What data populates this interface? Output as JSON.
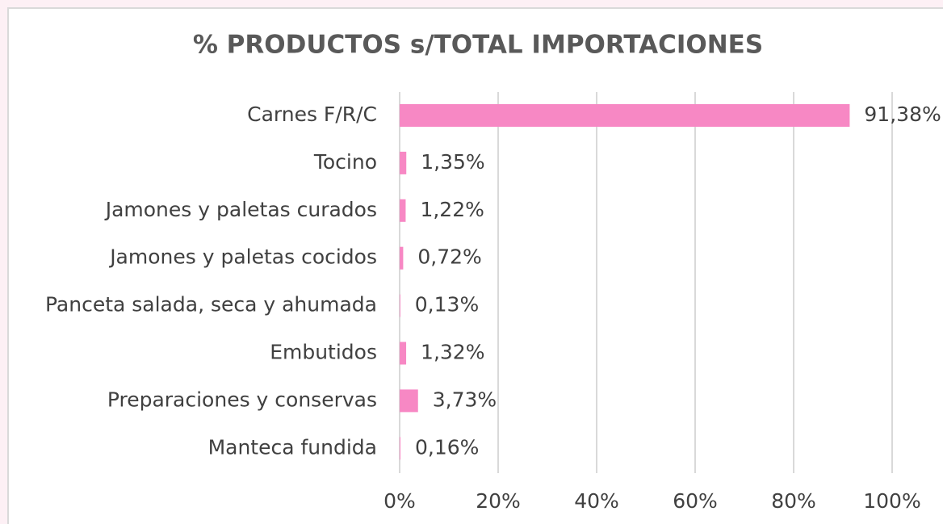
{
  "chart_data": {
    "type": "bar",
    "orientation": "horizontal",
    "title": "% PRODUCTOS s/TOTAL IMPORTACIONES",
    "categories": [
      "Carnes F/R/C",
      "Tocino",
      "Jamones y paletas curados",
      "Jamones y paletas cocidos",
      "Panceta salada, seca y ahumada",
      "Embutidos",
      "Preparaciones y conservas",
      "Manteca fundida"
    ],
    "values": [
      91.38,
      1.35,
      1.22,
      0.72,
      0.13,
      1.32,
      3.73,
      0.16
    ],
    "value_labels": [
      "91,38%",
      "1,35%",
      "1,22%",
      "0,72%",
      "0,13%",
      "1,32%",
      "3,73%",
      "0,16%"
    ],
    "color": "#f788c4",
    "xlim": [
      0,
      100
    ],
    "xticks": [
      {
        "value": 0,
        "label": "0%"
      },
      {
        "value": 20,
        "label": "20%"
      },
      {
        "value": 40,
        "label": "40%"
      },
      {
        "value": 60,
        "label": "60%"
      },
      {
        "value": 80,
        "label": "80%"
      },
      {
        "value": 100,
        "label": "100%"
      }
    ],
    "grid": true
  }
}
